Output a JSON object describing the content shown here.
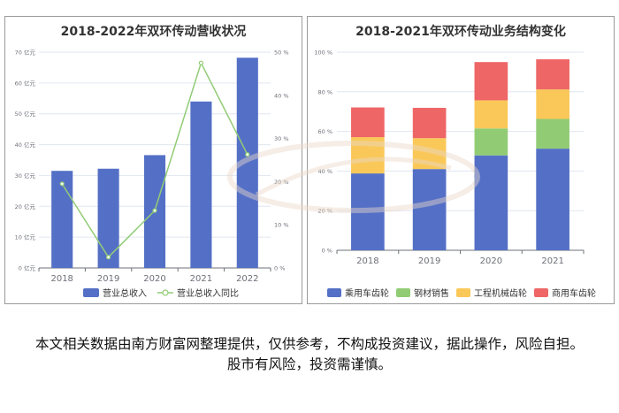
{
  "chart_data": [
    {
      "type": "bar",
      "title": "2018-2022年双环传动营收状况",
      "categories": [
        "2018",
        "2019",
        "2020",
        "2021",
        "2022"
      ],
      "series": [
        {
          "name": "营业总收入",
          "type": "bar",
          "axis": "left",
          "values": [
            31.5,
            32.2,
            36.6,
            54.0,
            68.2
          ]
        },
        {
          "name": "营业总收入同比",
          "type": "line",
          "axis": "right",
          "values": [
            19.5,
            2.5,
            13.3,
            47.5,
            26.3
          ]
        }
      ],
      "y_left": {
        "min": 0,
        "max": 70,
        "ticks": [
          0,
          10,
          20,
          30,
          40,
          50,
          60,
          70
        ],
        "tick_labels": [
          "0 亿元",
          "10 亿元",
          "20 亿元",
          "30 亿元",
          "40 亿元",
          "50 亿元",
          "60 亿元",
          "70 亿元"
        ]
      },
      "y_right": {
        "min": 0,
        "max": 50,
        "ticks": [
          0,
          10,
          20,
          30,
          40,
          50
        ],
        "tick_labels": [
          "0 %",
          "10 %",
          "20 %",
          "30 %",
          "40 %",
          "50 %"
        ]
      },
      "grid": true,
      "legend": "bottom",
      "colors": {
        "bar": "#5470c6",
        "line": "#91cc75"
      }
    },
    {
      "type": "bar",
      "stacked": true,
      "title": "2018-2021年双环传动业务结构变化",
      "categories": [
        "2018",
        "2019",
        "2020",
        "2021"
      ],
      "series": [
        {
          "name": "乘用车齿轮",
          "values": [
            38.8,
            41.0,
            47.9,
            51.3
          ],
          "color": "#5470c6"
        },
        {
          "name": "钢材销售",
          "values": [
            0,
            0,
            13.6,
            15.0
          ],
          "color": "#91cc75"
        },
        {
          "name": "工程机械齿轮",
          "values": [
            18.3,
            15.6,
            14.2,
            14.9
          ],
          "color": "#fac858"
        },
        {
          "name": "商用车齿轮",
          "values": [
            15.0,
            15.3,
            19.3,
            15.2
          ],
          "color": "#ee6666"
        }
      ],
      "y": {
        "min": 0,
        "max": 100,
        "ticks": [
          0,
          20,
          40,
          60,
          80,
          100
        ],
        "tick_labels": [
          "0 %",
          "20 %",
          "40 %",
          "60 %",
          "80 %",
          "100 %"
        ]
      },
      "grid": true,
      "legend": "bottom"
    }
  ],
  "footnote": "本文相关数据由南方财富网整理提供，仅供参考，不构成投资建议，据此操作，风险自担。股市有风险，投资需谨慎。"
}
